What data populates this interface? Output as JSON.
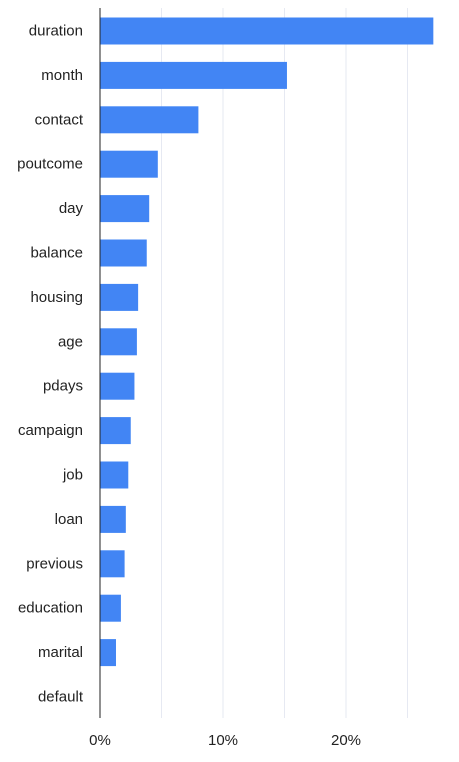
{
  "chart_data": {
    "type": "bar",
    "orientation": "horizontal",
    "categories": [
      "duration",
      "month",
      "contact",
      "poutcome",
      "day",
      "balance",
      "housing",
      "age",
      "pdays",
      "campaign",
      "job",
      "loan",
      "previous",
      "education",
      "marital",
      "default"
    ],
    "values": [
      27.1,
      15.2,
      8.0,
      4.7,
      4.0,
      3.8,
      3.1,
      3.0,
      2.8,
      2.5,
      2.3,
      2.1,
      2.0,
      1.7,
      1.3,
      0.0
    ],
    "x_ticks": [
      "0%",
      "10%",
      "20%"
    ],
    "x_tick_values": [
      0,
      10,
      20
    ],
    "xlim": [
      0,
      28
    ],
    "gridlines": [
      0,
      5,
      10,
      15,
      20,
      25
    ],
    "grid": true,
    "bar_color": "#4285f4",
    "grid_color": "#e6e9f2",
    "axis_color": "#222222"
  }
}
